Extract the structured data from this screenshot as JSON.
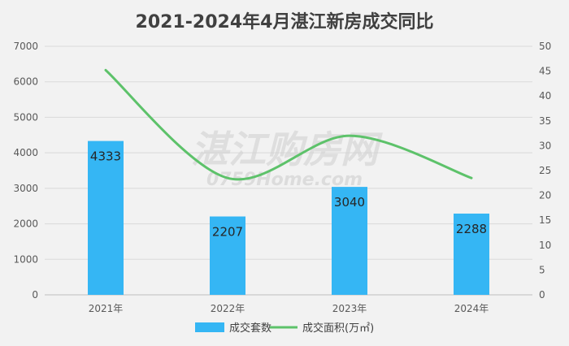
{
  "chart_data": {
    "type": "bar",
    "title": "2021-2024年4月湛江新房成交同比",
    "categories": [
      "2021年",
      "2022年",
      "2023年",
      "2024年"
    ],
    "series": [
      {
        "name": "成交套数",
        "type": "bar",
        "axis": "left",
        "values": [
          4333,
          2207,
          3040,
          2288
        ],
        "color": "#35b6f4"
      },
      {
        "name": "成交面积(万㎡)",
        "type": "line",
        "axis": "right",
        "values": [
          45.2,
          23.5,
          32.0,
          23.5
        ],
        "color": "#5dc26a"
      }
    ],
    "y_left": {
      "min": 0,
      "max": 7000,
      "ticks": [
        0,
        1000,
        2000,
        3000,
        4000,
        5000,
        6000,
        7000
      ]
    },
    "y_right": {
      "min": 0,
      "max": 50,
      "ticks": [
        0,
        5,
        10,
        15,
        20,
        25,
        30,
        35,
        40,
        45,
        50
      ]
    },
    "grid": true,
    "legend_position": "bottom",
    "watermark": {
      "main": "湛江购房网",
      "sub": "0759Home.com"
    }
  }
}
